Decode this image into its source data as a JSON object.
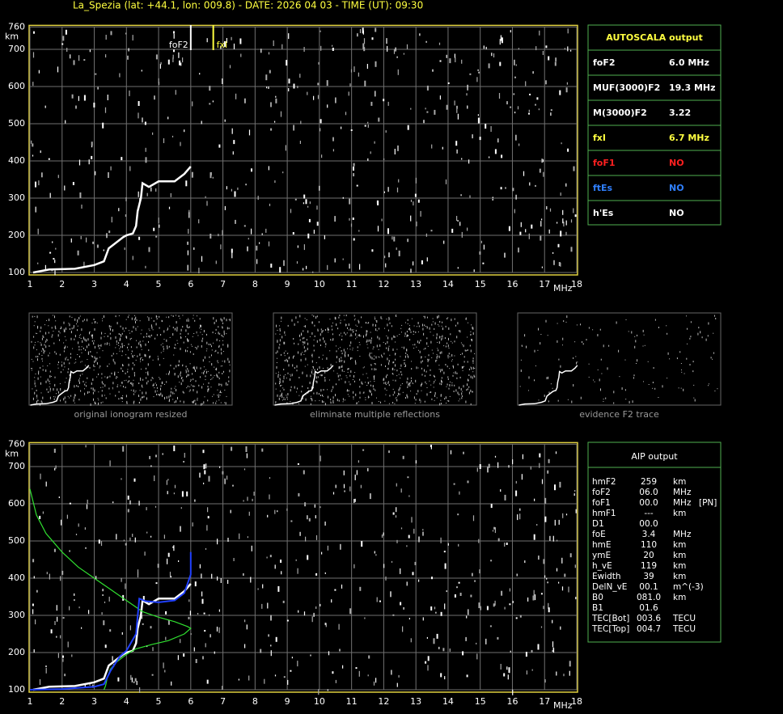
{
  "header": {
    "title": "La_Spezia (lat: +44.1, lon: 009.8) - DATE: 2026 04 03 - TIME (UT): 09:30"
  },
  "axes": {
    "xlim": [
      1,
      18
    ],
    "ylim": [
      100,
      760
    ],
    "xticks": [
      1,
      2,
      3,
      4,
      5,
      6,
      7,
      8,
      9,
      10,
      11,
      12,
      13,
      14,
      15,
      16,
      17,
      18
    ],
    "yticks": [
      100,
      200,
      300,
      400,
      500,
      600,
      700,
      760
    ],
    "xunit": "MHz",
    "yunit": "km",
    "grid": true
  },
  "ionogram": {
    "markers": [
      {
        "label": "foF2",
        "f": 6.0,
        "color": "#ffffff"
      },
      {
        "label": "fxI",
        "f": 6.7,
        "color": "#ffff40"
      }
    ],
    "echo_trace": {
      "f": [
        1.1,
        1.6,
        2.4,
        3.0,
        3.3,
        3.45,
        3.6,
        3.9,
        4.0,
        4.2,
        4.3,
        4.35,
        4.45,
        4.5,
        4.7,
        5.0,
        5.5,
        5.8,
        6.0
      ],
      "h": [
        100,
        108,
        110,
        120,
        130,
        165,
        175,
        195,
        200,
        205,
        225,
        265,
        300,
        340,
        330,
        345,
        345,
        365,
        385
      ]
    }
  },
  "autoscala": {
    "title": "AUTOSCALA output",
    "rows": [
      {
        "label": "foF2",
        "value": "6.0 MHz",
        "color": "#ffffff"
      },
      {
        "label": "MUF(3000)F2",
        "value": "19.3 MHz",
        "color": "#ffffff"
      },
      {
        "label": "M(3000)F2",
        "value": "3.22",
        "color": "#ffffff"
      },
      {
        "label": "fxI",
        "value": "6.7 MHz",
        "color": "#ffff40"
      },
      {
        "label": "foF1",
        "value": "NO",
        "color": "#ff2020"
      },
      {
        "label": "ftEs",
        "value": "NO",
        "color": "#3080ff"
      },
      {
        "label": "h'Es",
        "value": "NO",
        "color": "#ffffff"
      }
    ]
  },
  "thumbnails": [
    "original ionogram resized",
    "eliminate multiple reflections",
    "evidence F2 trace"
  ],
  "aip": {
    "title": "AIP output",
    "rows": [
      [
        "hmF2",
        "259",
        "km"
      ],
      [
        "foF2",
        "06.0",
        "MHz"
      ],
      [
        "foF1",
        "00.0",
        "MHz",
        "[PN]"
      ],
      [
        "hmF1",
        "---",
        "km"
      ],
      [
        "D1",
        "00.0"
      ],
      [
        "foE",
        "3.4",
        "MHz"
      ],
      [
        "hmE",
        "110",
        "km"
      ],
      [
        "ymE",
        "20",
        "km"
      ],
      [
        "h_vE",
        "119",
        "km"
      ],
      [
        "Ewidth",
        "39",
        "km"
      ],
      [
        "DelN_vE",
        "00.1",
        "m^(-3)"
      ],
      [
        "B0",
        "081.0",
        "km"
      ],
      [
        "B1",
        "01.6"
      ],
      [
        "TEC[Bot]",
        "003.6",
        "TECU"
      ],
      [
        "TEC[Top]",
        "004.7",
        "TECU"
      ]
    ]
  },
  "profile": {
    "green": {
      "color": "#30e030",
      "f": [
        1.0,
        1.2,
        1.5,
        2.0,
        2.5,
        3.0,
        3.5,
        4.0,
        4.5,
        5.0,
        5.5,
        5.9,
        6.0,
        5.8,
        5.3,
        4.8,
        4.3,
        4.0,
        3.7,
        3.5,
        3.4,
        3.35,
        3.3
      ],
      "h": [
        640,
        570,
        520,
        470,
        430,
        400,
        370,
        340,
        310,
        295,
        283,
        270,
        265,
        250,
        232,
        222,
        210,
        195,
        175,
        155,
        130,
        110,
        100
      ]
    },
    "blue": {
      "color": "#2040ff",
      "f": [
        1.0,
        2.0,
        3.0,
        3.3,
        3.5,
        3.8,
        4.0,
        4.3,
        4.4,
        4.6,
        5.0,
        5.5,
        5.8,
        6.0,
        6.0
      ],
      "h": [
        100,
        102,
        108,
        115,
        150,
        190,
        205,
        250,
        345,
        338,
        335,
        340,
        360,
        410,
        470
      ]
    }
  }
}
